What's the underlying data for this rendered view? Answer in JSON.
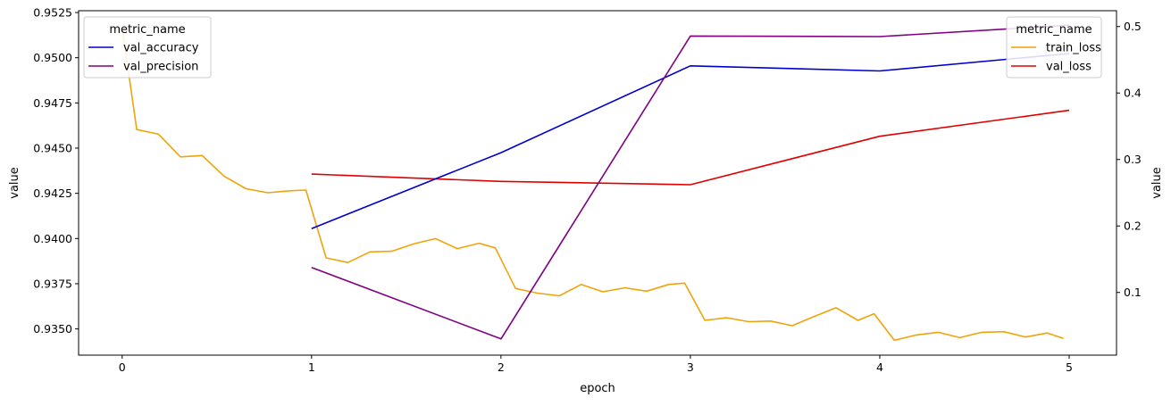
{
  "chart_data": {
    "type": "line",
    "xlabel": "epoch",
    "ylabel_left": "value",
    "ylabel_right": "value",
    "xlim": [
      -0.23,
      5.25
    ],
    "x_ticks": [
      0,
      1,
      2,
      3,
      4,
      5
    ],
    "left_axis": {
      "ylim": [
        0.93355,
        0.9526
      ],
      "ticks": [
        "0.9350",
        "0.9375",
        "0.9400",
        "0.9425",
        "0.9450",
        "0.9475",
        "0.9500",
        "0.9525"
      ],
      "legend": {
        "title": "metric_name",
        "position": "top-left"
      },
      "series": [
        {
          "name": "val_accuracy",
          "color": "#0000cc",
          "x": [
            1,
            2,
            3,
            4,
            5
          ],
          "y": [
            0.94055,
            0.94475,
            0.94955,
            0.94927,
            0.95023
          ]
        },
        {
          "name": "val_precision",
          "color": "#800080",
          "x": [
            1,
            2,
            3,
            4,
            5
          ],
          "y": [
            0.9384,
            0.93445,
            0.9512,
            0.95117,
            0.9518
          ]
        }
      ]
    },
    "right_axis": {
      "ylim": [
        0.0057,
        0.5238
      ],
      "ticks": [
        "0.1",
        "0.2",
        "0.3",
        "0.4",
        "0.5"
      ],
      "legend": {
        "title": "metric_name",
        "position": "top-right"
      },
      "series": [
        {
          "name": "train_loss",
          "color": "#f0a30a",
          "x": [
            0,
            0.077,
            0.192,
            0.308,
            0.423,
            0.538,
            0.654,
            0.769,
            0.885,
            0.97,
            1.077,
            1.192,
            1.308,
            1.423,
            1.538,
            1.654,
            1.769,
            1.885,
            1.97,
            2.077,
            2.192,
            2.308,
            2.423,
            2.538,
            2.654,
            2.769,
            2.885,
            2.97,
            3.077,
            3.192,
            3.308,
            3.423,
            3.538,
            3.654,
            3.769,
            3.885,
            3.97,
            4.077,
            4.192,
            4.308,
            4.423,
            4.538,
            4.654,
            4.769,
            4.885,
            4.97
          ],
          "y": [
            0.498,
            0.345,
            0.338,
            0.304,
            0.306,
            0.275,
            0.256,
            0.25,
            0.253,
            0.254,
            0.152,
            0.145,
            0.161,
            0.162,
            0.173,
            0.181,
            0.166,
            0.174,
            0.167,
            0.106,
            0.099,
            0.095,
            0.112,
            0.101,
            0.107,
            0.102,
            0.112,
            0.114,
            0.058,
            0.062,
            0.056,
            0.057,
            0.05,
            0.064,
            0.077,
            0.058,
            0.068,
            0.028,
            0.036,
            0.04,
            0.032,
            0.04,
            0.041,
            0.033,
            0.039,
            0.031
          ]
        },
        {
          "name": "val_loss",
          "color": "#e00000",
          "x": [
            1,
            2,
            3,
            4,
            5
          ],
          "y": [
            0.278,
            0.267,
            0.262,
            0.335,
            0.374
          ]
        }
      ]
    }
  }
}
